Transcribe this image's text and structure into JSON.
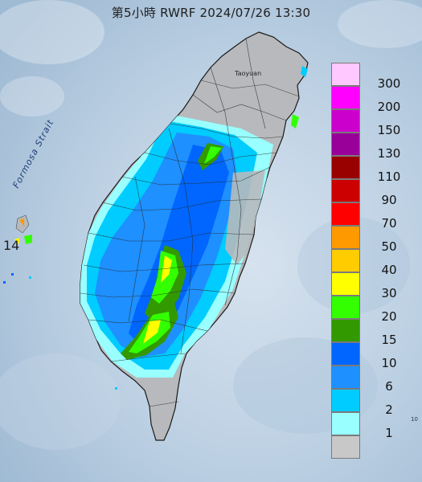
{
  "title": "第5小時  RWRF 2024/07/26 13:30",
  "labels": {
    "strait": "Formosa Strait",
    "city": "Taoyuan",
    "island": "14",
    "tiny": "10"
  },
  "legend": {
    "items": [
      {
        "label": "300",
        "color": "#ffc8ff"
      },
      {
        "label": "200",
        "color": "#ff00ff"
      },
      {
        "label": "150",
        "color": "#cc00cc"
      },
      {
        "label": "130",
        "color": "#990099"
      },
      {
        "label": "110",
        "color": "#990000"
      },
      {
        "label": "90",
        "color": "#cc0000"
      },
      {
        "label": "70",
        "color": "#ff0000"
      },
      {
        "label": "50",
        "color": "#ff9900"
      },
      {
        "label": "40",
        "color": "#ffcc00"
      },
      {
        "label": "30",
        "color": "#ffff00"
      },
      {
        "label": "20",
        "color": "#33ff00"
      },
      {
        "label": "15",
        "color": "#339900"
      },
      {
        "label": "10",
        "color": "#0066ff"
      },
      {
        "label": "6",
        "color": "#1e90ff"
      },
      {
        "label": "2",
        "color": "#00ccff"
      },
      {
        "label": "1",
        "color": "#99ffff"
      },
      {
        "label": "",
        "color": "#c8c8c8"
      }
    ]
  }
}
